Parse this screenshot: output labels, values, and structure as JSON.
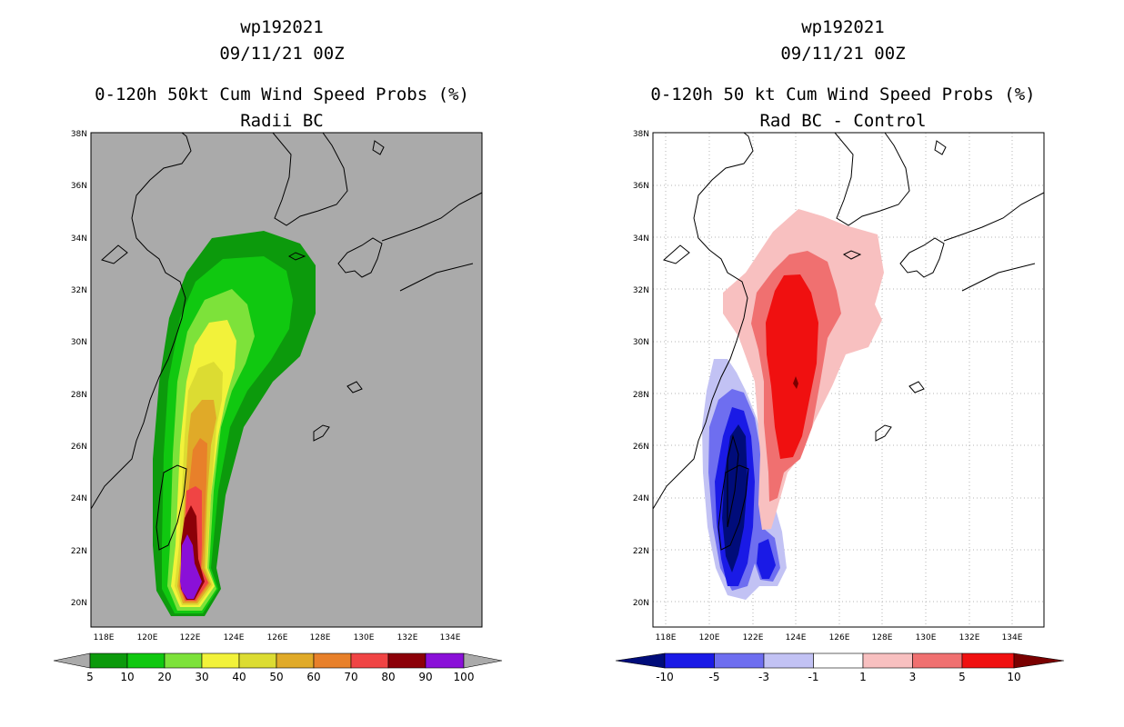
{
  "left": {
    "title_line1": "wp192021",
    "title_line2": "09/11/21 00Z",
    "title_line3": "0-120h 50kt Cum Wind Speed Probs (%)",
    "title_line4": "Radii BC",
    "lat_ticks": [
      "38N",
      "36N",
      "34N",
      "32N",
      "30N",
      "28N",
      "26N",
      "24N",
      "22N",
      "20N"
    ],
    "lon_ticks": [
      "118E",
      "120E",
      "122E",
      "124E",
      "126E",
      "128E",
      "130E",
      "132E",
      "134E"
    ],
    "colorbar": {
      "labels": [
        "5",
        "10",
        "20",
        "30",
        "40",
        "50",
        "60",
        "70",
        "80",
        "90",
        "100"
      ],
      "colors": [
        "#0c9a0c",
        "#10c810",
        "#7de23a",
        "#f2f23a",
        "#dcdc32",
        "#e0aa28",
        "#e8802a",
        "#f04444",
        "#8c0008",
        "#8a10d8"
      ]
    }
  },
  "right": {
    "title_line1": "wp192021",
    "title_line2": "09/11/21 00Z",
    "title_line3": "0-120h 50 kt Cum Wind Speed Probs (%)",
    "title_line4": "Rad BC - Control",
    "lat_ticks": [
      "38N",
      "36N",
      "34N",
      "32N",
      "30N",
      "28N",
      "26N",
      "24N",
      "22N",
      "20N"
    ],
    "lon_ticks": [
      "118E",
      "120E",
      "122E",
      "124E",
      "126E",
      "128E",
      "130E",
      "132E",
      "134E"
    ],
    "colorbar": {
      "labels": [
        "-10",
        "-5",
        "-3",
        "-1",
        "1",
        "3",
        "5",
        "10"
      ],
      "colors": [
        "#000c7a",
        "#1a1ae6",
        "#6e6ef0",
        "#c2c2f4",
        "#ffffff",
        "#f8c0c0",
        "#f07070",
        "#f01010",
        "#7a0000"
      ]
    }
  }
}
